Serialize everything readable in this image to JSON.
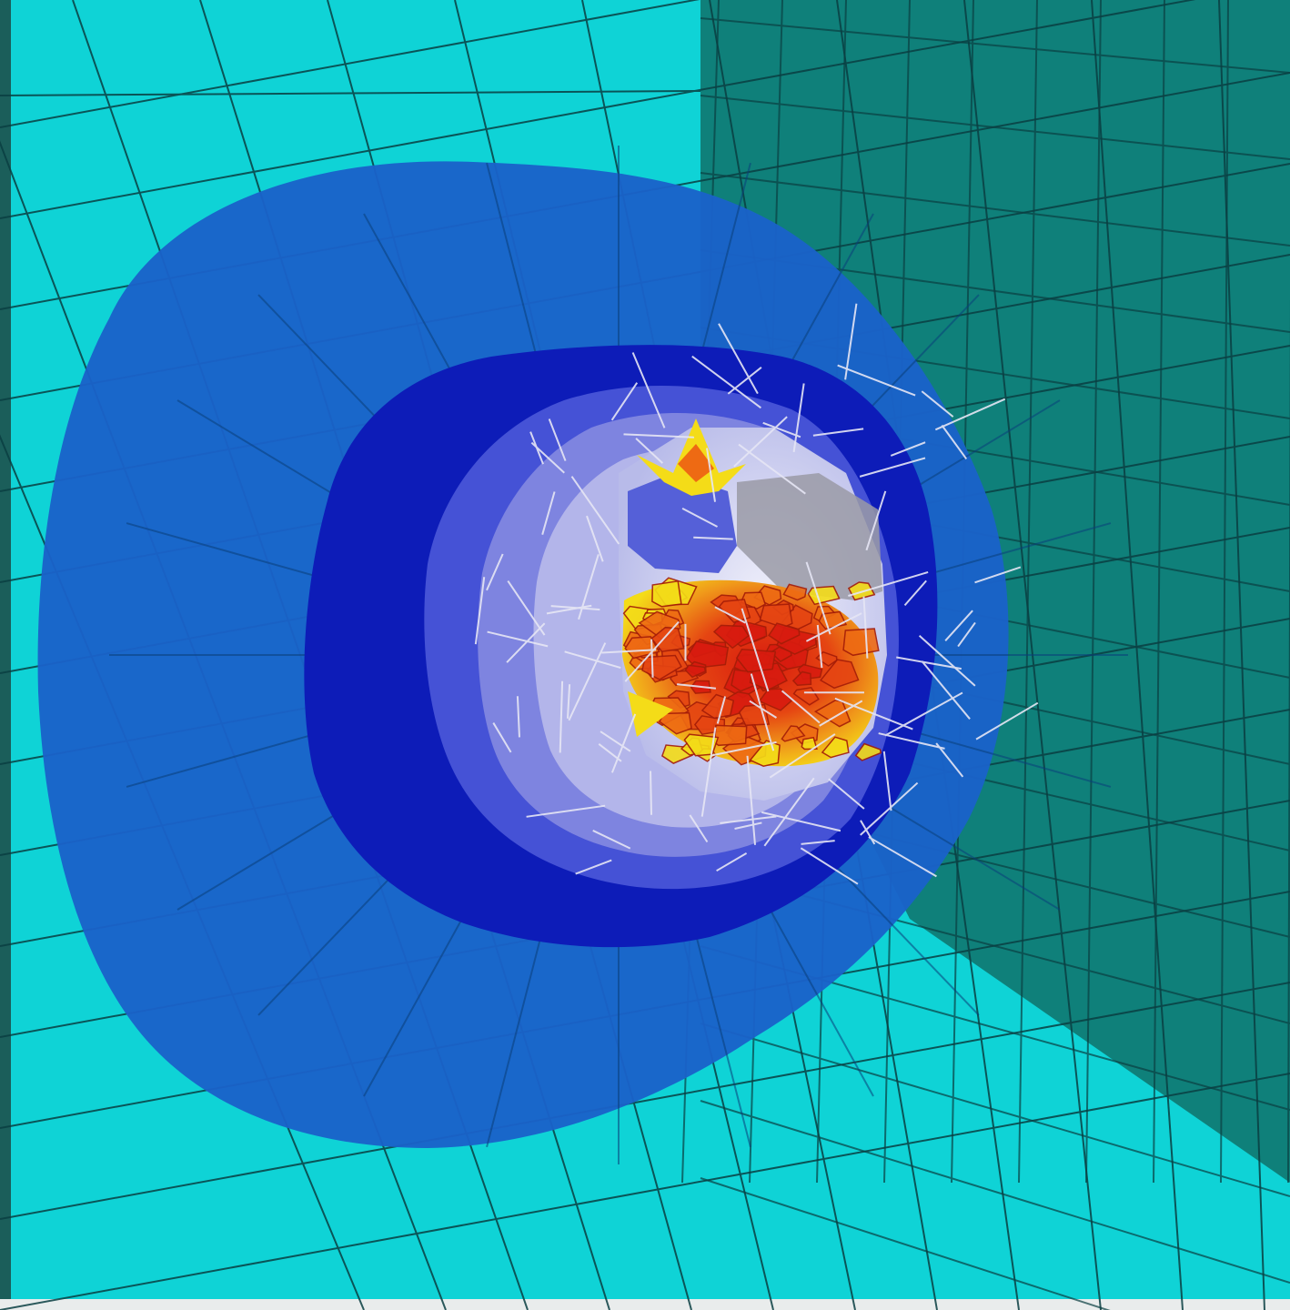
{
  "view": {
    "kind": "3d-fea-mesh-render",
    "visible_text": []
  },
  "palette": {
    "frame_border": "#1b5e5a",
    "floor_plane": "#0fd3d6",
    "back_wall": "#0f807a",
    "mesh_line_dark": "#0a3f42",
    "outer_shell": "#1a62c9",
    "middle_shell": "#0d1cb8",
    "inner_shell_1": "#4552d6",
    "inner_shell_2": "#7e84e0",
    "inner_shell_3": "#b3b5ea",
    "core_white": "#dcdcef",
    "wireframe_line": "#e6e6f5",
    "hot_red": "#d81b0f",
    "hot_orange": "#ee6a13",
    "hot_yellow": "#f4dc18"
  },
  "icons": [
    "mesh-grid-lines",
    "wireframe-overlay"
  ]
}
